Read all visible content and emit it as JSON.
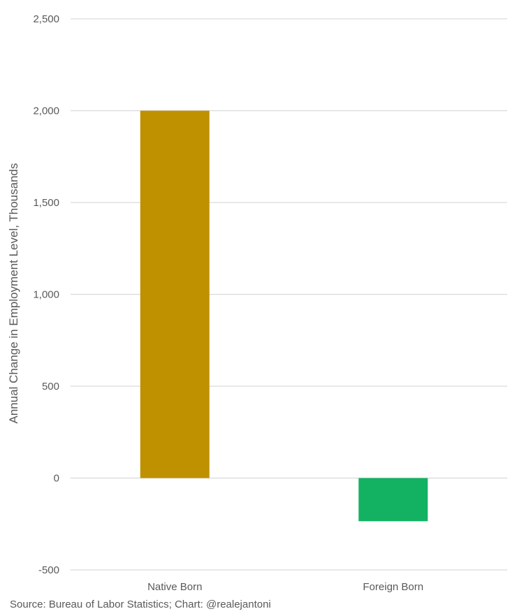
{
  "chart_data": {
    "type": "bar",
    "categories": [
      "Native Born",
      "Foreign Born"
    ],
    "values": [
      2000,
      -235
    ],
    "colors": [
      "#bf9000",
      "#12b262"
    ],
    "ylabel": "Annual Change in Employment Level, Thousands",
    "xlabel": "",
    "ylim": [
      -500,
      2500
    ],
    "yticks": [
      -500,
      0,
      500,
      1000,
      1500,
      2000,
      2500
    ],
    "ytick_labels": [
      "-500",
      "0",
      "500",
      "1,000",
      "1,500",
      "2,000",
      "2,500"
    ],
    "grid": true,
    "legend": "none"
  },
  "source_note": "Source: Bureau of Labor Statistics; Chart: @realejantoni"
}
